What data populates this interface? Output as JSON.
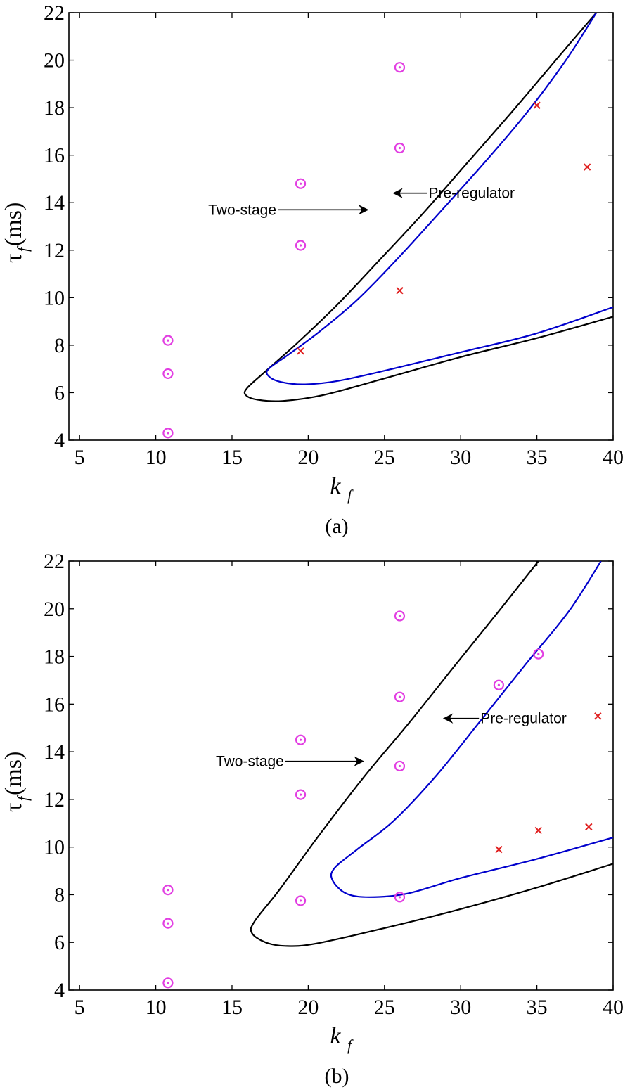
{
  "chart_data": [
    {
      "type": "line",
      "caption": "(a)",
      "xlabel": {
        "main": "k",
        "sub": "f"
      },
      "ylabel": {
        "main": "τ",
        "sub": "f",
        "unit": " (ms)"
      },
      "xlim": [
        4.3,
        40
      ],
      "ylim": [
        4,
        22
      ],
      "xticks": [
        5,
        10,
        15,
        20,
        25,
        30,
        35,
        40
      ],
      "yticks": [
        4,
        6,
        8,
        10,
        12,
        14,
        16,
        18,
        20,
        22
      ],
      "grid": false,
      "series": [
        {
          "name": "Two-stage",
          "color": "#000000",
          "points": [
            [
              38.9,
              22
            ],
            [
              36.5,
              20.2
            ],
            [
              33.6,
              18.0
            ],
            [
              30.6,
              15.8
            ],
            [
              27.6,
              13.6
            ],
            [
              24.7,
              11.6
            ],
            [
              21.9,
              9.7
            ],
            [
              19.3,
              8.1
            ],
            [
              17.2,
              6.9
            ],
            [
              16.0,
              6.2
            ],
            [
              15.9,
              5.9
            ],
            [
              16.7,
              5.7
            ],
            [
              18.3,
              5.65
            ],
            [
              21.0,
              5.9
            ],
            [
              25.0,
              6.6
            ],
            [
              30.0,
              7.5
            ],
            [
              35.0,
              8.3
            ],
            [
              40.0,
              9.2
            ]
          ]
        },
        {
          "name": "Pre-regulator",
          "color": "#0000cc",
          "points": [
            [
              38.9,
              22
            ],
            [
              36.8,
              19.9
            ],
            [
              34.1,
              17.6
            ],
            [
              31.3,
              15.5
            ],
            [
              28.5,
              13.5
            ],
            [
              25.8,
              11.6
            ],
            [
              23.2,
              9.9
            ],
            [
              20.8,
              8.6
            ],
            [
              18.7,
              7.6
            ],
            [
              17.4,
              7.0
            ],
            [
              17.4,
              6.7
            ],
            [
              18.2,
              6.45
            ],
            [
              19.8,
              6.35
            ],
            [
              22.0,
              6.5
            ],
            [
              25.5,
              7.0
            ],
            [
              30.0,
              7.7
            ],
            [
              35.0,
              8.5
            ],
            [
              40.0,
              9.6
            ]
          ]
        }
      ],
      "circle_points": [
        [
          10.8,
          4.3
        ],
        [
          10.8,
          6.8
        ],
        [
          10.8,
          8.2
        ],
        [
          19.5,
          12.2
        ],
        [
          19.5,
          14.8
        ],
        [
          26.0,
          16.3
        ],
        [
          26.0,
          19.7
        ]
      ],
      "x_points": [
        [
          19.5,
          7.75
        ],
        [
          26.0,
          10.3
        ],
        [
          35.0,
          18.1
        ],
        [
          38.3,
          15.5
        ]
      ],
      "annotations": [
        {
          "text": "Two-stage",
          "side": "left",
          "tip": [
            23.9,
            13.7
          ],
          "text_at": [
            18.0,
            13.7
          ]
        },
        {
          "text": "Pre-regulator",
          "side": "right",
          "tip": [
            25.6,
            14.4
          ],
          "text_at": [
            27.8,
            14.4
          ]
        }
      ],
      "marker_colors": {
        "circle": "#e23ee2",
        "x": "#e02020"
      }
    },
    {
      "type": "line",
      "caption": "(b)",
      "xlabel": {
        "main": "k",
        "sub": "f"
      },
      "ylabel": {
        "main": "τ",
        "sub": "f",
        "unit": " (ms)"
      },
      "xlim": [
        4.3,
        40
      ],
      "ylim": [
        4,
        22
      ],
      "xticks": [
        5,
        10,
        15,
        20,
        25,
        30,
        35,
        40
      ],
      "yticks": [
        4,
        6,
        8,
        10,
        12,
        14,
        16,
        18,
        20,
        22
      ],
      "grid": false,
      "series": [
        {
          "name": "Two-stage",
          "color": "#000000",
          "points": [
            [
              35.1,
              22
            ],
            [
              32.5,
              19.9
            ],
            [
              29.6,
              17.6
            ],
            [
              26.6,
              15.2
            ],
            [
              23.6,
              12.9
            ],
            [
              20.6,
              10.4
            ],
            [
              18.1,
              8.2
            ],
            [
              16.5,
              6.9
            ],
            [
              16.3,
              6.4
            ],
            [
              17.2,
              6.0
            ],
            [
              18.5,
              5.85
            ],
            [
              20.5,
              5.95
            ],
            [
              25.0,
              6.6
            ],
            [
              30.0,
              7.4
            ],
            [
              35.0,
              8.3
            ],
            [
              40.0,
              9.3
            ]
          ]
        },
        {
          "name": "Pre-regulator",
          "color": "#0000cc",
          "points": [
            [
              39.2,
              22
            ],
            [
              37.1,
              19.9
            ],
            [
              34.3,
              17.7
            ],
            [
              31.3,
              15.3
            ],
            [
              28.4,
              13.0
            ],
            [
              25.6,
              11.1
            ],
            [
              23.2,
              9.9
            ],
            [
              21.7,
              9.1
            ],
            [
              21.6,
              8.6
            ],
            [
              22.5,
              8.05
            ],
            [
              24.0,
              7.9
            ],
            [
              26.5,
              8.05
            ],
            [
              30.0,
              8.7
            ],
            [
              35.0,
              9.5
            ],
            [
              40.0,
              10.4
            ]
          ]
        }
      ],
      "circle_points": [
        [
          10.8,
          4.3
        ],
        [
          10.8,
          6.8
        ],
        [
          10.8,
          8.2
        ],
        [
          19.5,
          7.75
        ],
        [
          19.5,
          12.2
        ],
        [
          19.5,
          14.5
        ],
        [
          26.0,
          7.9
        ],
        [
          26.0,
          13.4
        ],
        [
          26.0,
          16.3
        ],
        [
          26.0,
          19.7
        ],
        [
          32.5,
          16.8
        ],
        [
          35.1,
          18.1
        ]
      ],
      "x_points": [
        [
          32.5,
          9.9
        ],
        [
          35.1,
          10.7
        ],
        [
          38.4,
          10.85
        ],
        [
          39.0,
          15.5
        ]
      ],
      "annotations": [
        {
          "text": "Two-stage",
          "side": "left",
          "tip": [
            23.6,
            13.6
          ],
          "text_at": [
            18.5,
            13.6
          ]
        },
        {
          "text": "Pre-regulator",
          "side": "right",
          "tip": [
            28.9,
            15.4
          ],
          "text_at": [
            31.2,
            15.4
          ]
        }
      ],
      "marker_colors": {
        "circle": "#e23ee2",
        "x": "#e02020"
      }
    }
  ]
}
